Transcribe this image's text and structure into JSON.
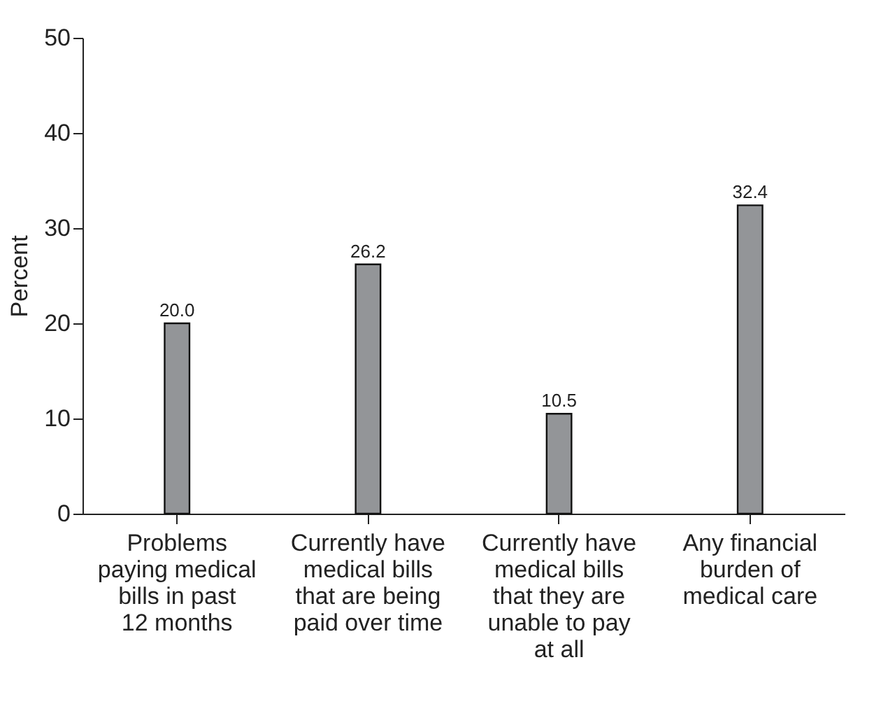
{
  "chart_data": {
    "type": "bar",
    "ylabel": "Percent",
    "categories": [
      "Problems paying medical bills in past 12 months",
      "Currently have medical bills that are being paid over time",
      "Currently have medical bills that they are unable to pay at all",
      "Any financial burden of medical care"
    ],
    "values": [
      20.0,
      26.2,
      10.5,
      32.4
    ],
    "color": "#939598",
    "ylim": [
      0,
      50
    ],
    "yticks": [
      0,
      10,
      20,
      30,
      40,
      50
    ],
    "grid": false,
    "value_labels": [
      "20.0",
      "26.2",
      "10.5",
      "32.4"
    ]
  }
}
